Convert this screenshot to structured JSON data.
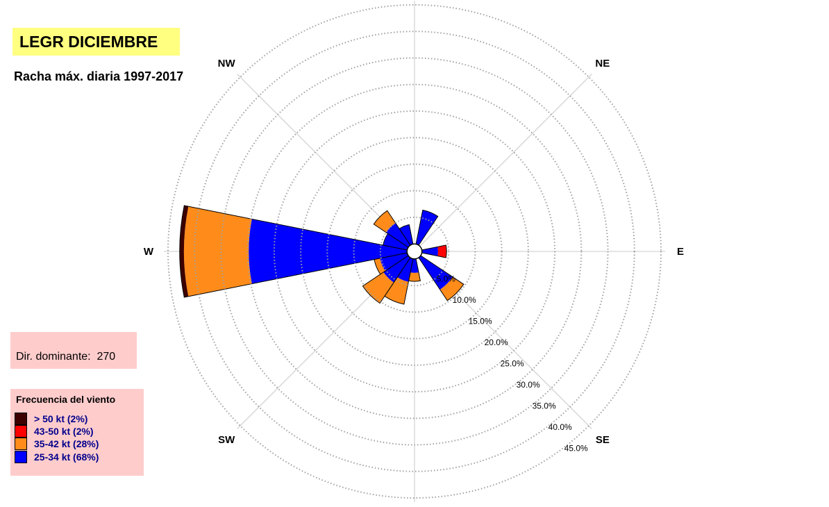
{
  "title": "LEGR DICIEMBRE",
  "subtitle": "Racha máx. diaria 1997-2017",
  "dominant": {
    "label": "Dir. dominante:",
    "value": "270"
  },
  "legend": {
    "title": "Frecuencia del viento",
    "items": [
      {
        "label": "> 50 kt (2%)",
        "color": "#3d0000"
      },
      {
        "label": "43-50 kt (2%)",
        "color": "#ff0000"
      },
      {
        "label": "35-42 kt (28%)",
        "color": "#ff8c1a"
      },
      {
        "label": "25-34 kt (68%)",
        "color": "#0000ff"
      }
    ]
  },
  "chart_data": {
    "type": "windrose",
    "title": "LEGR DICIEMBRE",
    "subtitle": "Racha máx. diaria 1997-2017",
    "direction_labels": [
      "NE",
      "E",
      "SE",
      "SW",
      "W",
      "NW"
    ],
    "radial_ticks": [
      "5.0%",
      "10.0%",
      "15.0%",
      "20.0%",
      "25.0%",
      "30.0%",
      "35.0%",
      "40.0%",
      "45.0%"
    ],
    "rmax": 45,
    "direction_step_deg": 22.5,
    "series": [
      {
        "name": "25-34 kt (68%)",
        "color": "#0000ff"
      },
      {
        "name": "35-42 kt (28%)",
        "color": "#ff8c1a"
      },
      {
        "name": "43-50 kt (2%)",
        "color": "#ff0000"
      },
      {
        "name": "> 50 kt (2%)",
        "color": "#3d0000"
      }
    ],
    "sectors": [
      {
        "dir": 22.5,
        "cumulative": [
          6.5,
          6.5,
          6.5,
          6.5
        ]
      },
      {
        "dir": 90,
        "cumulative": [
          3.0,
          3.0,
          4.6,
          4.6
        ]
      },
      {
        "dir": 135,
        "cumulative": [
          7.2,
          9.7,
          9.7,
          9.7
        ]
      },
      {
        "dir": 180,
        "cumulative": [
          2.6,
          4.2,
          4.2,
          4.2
        ]
      },
      {
        "dir": 202.5,
        "cumulative": [
          4.4,
          8.7,
          8.7,
          8.7
        ]
      },
      {
        "dir": 225,
        "cumulative": [
          5.6,
          10.3,
          10.3,
          10.3
        ]
      },
      {
        "dir": 247.5,
        "cumulative": [
          5.2,
          6.3,
          6.3,
          6.3
        ]
      },
      {
        "dir": 270,
        "cumulative": [
          29.8,
          42.0,
          42.0,
          42.8
        ]
      },
      {
        "dir": 292.5,
        "cumulative": [
          4.6,
          4.6,
          4.6,
          4.6
        ]
      },
      {
        "dir": 315,
        "cumulative": [
          5.0,
          7.8,
          7.8,
          7.8
        ]
      },
      {
        "dir": 337.5,
        "cumulative": [
          3.7,
          3.7,
          3.7,
          3.7
        ]
      }
    ]
  }
}
